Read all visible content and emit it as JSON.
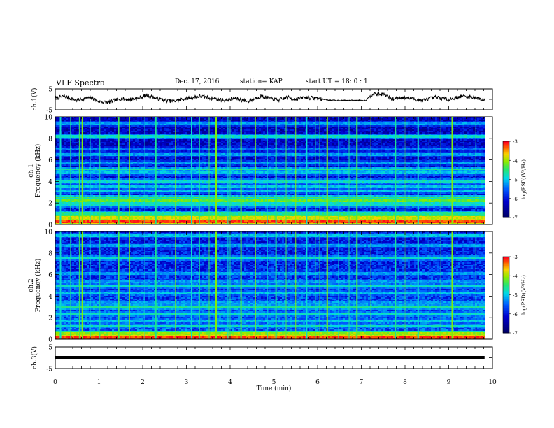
{
  "header": {
    "title": "VLF Spectra",
    "date": "Dec. 17, 2016",
    "station": "station= KAP",
    "start": "start  UT =   18: 0   : 1"
  },
  "chart_data": [
    {
      "type": "line",
      "panel": "ch1-waveform",
      "ylabel": "ch.1(V)",
      "ylim": [
        -5,
        5
      ],
      "yticks": [
        "5",
        "-5"
      ],
      "xlim": [
        0,
        10
      ],
      "trend_points": {
        "x": [
          0,
          0.2,
          0.5,
          0.8,
          1.0,
          1.2,
          1.5,
          1.7,
          1.9,
          2.1,
          2.4,
          2.7,
          3.0,
          3.3,
          3.6,
          3.9,
          4.1,
          4.4,
          4.7,
          4.9,
          5.1,
          5.3,
          5.5,
          5.7,
          6.0,
          6.3,
          6.6,
          6.9,
          7.1,
          7.25,
          7.5,
          7.7,
          7.9,
          8.1,
          8.4,
          8.7,
          9.0,
          9.3,
          9.6,
          9.8
        ],
        "y": [
          0.5,
          1.5,
          -0.5,
          0.8,
          -1.0,
          -1.5,
          0.3,
          0.0,
          0.5,
          2.0,
          0.0,
          -1.0,
          0.5,
          1.5,
          0.5,
          -0.5,
          0.5,
          -1.0,
          1.5,
          0.5,
          -0.5,
          1.0,
          0.0,
          1.0,
          0.5,
          -0.5,
          -0.5,
          -0.5,
          -0.5,
          2.5,
          2.5,
          0.0,
          1.0,
          0.5,
          -0.5,
          1.0,
          0.0,
          1.5,
          1.0,
          -0.5
        ]
      },
      "color": "#000000"
    },
    {
      "type": "heatmap",
      "panel": "ch1-spectrogram",
      "ylabel": "ch.1\nFrequency (kHz)",
      "ylim": [
        0,
        10
      ],
      "yticks": [
        "0",
        "2",
        "4",
        "6",
        "8",
        "10"
      ],
      "xlim": [
        0,
        10
      ],
      "colorbar": {
        "label": "log(PSD)(V²/Hz)",
        "range": [
          -7,
          -3
        ],
        "ticks": [
          "-3",
          "-4",
          "-5",
          "-6",
          "-7"
        ]
      },
      "bands_khz": [
        {
          "f": 0.3,
          "level": 0.95
        },
        {
          "f": 0.7,
          "level": 0.8
        },
        {
          "f": 1.1,
          "level": 0.6
        },
        {
          "f": 1.9,
          "level": 0.55
        },
        {
          "f": 2.3,
          "level": 0.7
        },
        {
          "f": 2.6,
          "level": 0.65
        },
        {
          "f": 3.2,
          "level": 0.5
        },
        {
          "f": 3.6,
          "level": 0.5
        },
        {
          "f": 4.1,
          "level": 0.55
        },
        {
          "f": 4.9,
          "level": 0.5
        },
        {
          "f": 5.2,
          "level": 0.6
        },
        {
          "f": 5.8,
          "level": 0.45
        },
        {
          "f": 6.6,
          "level": 0.45
        },
        {
          "f": 7.1,
          "level": 0.4
        },
        {
          "f": 8.3,
          "level": 0.55
        },
        {
          "f": 9.4,
          "level": 0.45
        }
      ],
      "background_level": 0.3
    },
    {
      "type": "heatmap",
      "panel": "ch2-spectrogram",
      "ylabel": "ch.2\nFrequency (kHz)",
      "ylim": [
        0,
        10
      ],
      "yticks": [
        "0",
        "2",
        "4",
        "6",
        "8",
        "10"
      ],
      "xlim": [
        0,
        10
      ],
      "colorbar": {
        "label": "log(PSD)(V²/Hz)",
        "range": [
          -7,
          -3
        ],
        "ticks": [
          "-3",
          "-4",
          "-5",
          "-6",
          "-7"
        ]
      },
      "bands_khz": [
        {
          "f": 0.2,
          "level": 0.95
        },
        {
          "f": 0.6,
          "level": 0.75
        },
        {
          "f": 1.3,
          "level": 0.55
        },
        {
          "f": 1.8,
          "level": 0.5
        },
        {
          "f": 2.4,
          "level": 0.55
        },
        {
          "f": 3.0,
          "level": 0.6
        },
        {
          "f": 3.4,
          "level": 0.45
        },
        {
          "f": 4.4,
          "level": 0.5
        },
        {
          "f": 5.0,
          "level": 0.55
        },
        {
          "f": 5.4,
          "level": 0.45
        },
        {
          "f": 6.2,
          "level": 0.45
        },
        {
          "f": 7.6,
          "level": 0.55
        },
        {
          "f": 8.8,
          "level": 0.45
        },
        {
          "f": 9.7,
          "level": 0.5
        }
      ],
      "background_level": 0.38
    },
    {
      "type": "line",
      "panel": "ch3-waveform",
      "ylabel": "ch.3(V)",
      "ylim": [
        -5,
        5
      ],
      "yticks": [
        "5",
        "-5"
      ],
      "xlim": [
        0,
        10
      ],
      "constant_value": 0,
      "color": "#000000"
    }
  ],
  "xaxis": {
    "label": "Time (min)",
    "ticks": [
      "0",
      "1",
      "2",
      "3",
      "4",
      "5",
      "6",
      "7",
      "8",
      "9",
      "10"
    ],
    "data_end_min": 9.82
  },
  "impulse_times_min": [
    0.12,
    0.35,
    0.55,
    0.62,
    0.8,
    1.02,
    1.45,
    1.7,
    2.05,
    2.3,
    2.6,
    2.75,
    3.12,
    3.3,
    3.52,
    3.68,
    3.95,
    4.0,
    4.25,
    4.58,
    4.85,
    5.05,
    5.28,
    5.5,
    5.75,
    5.95,
    6.05,
    6.22,
    6.48,
    6.72,
    6.9,
    7.22,
    7.45,
    7.78,
    7.98,
    8.02,
    8.3,
    8.55,
    8.82,
    9.08,
    9.35,
    9.62
  ]
}
